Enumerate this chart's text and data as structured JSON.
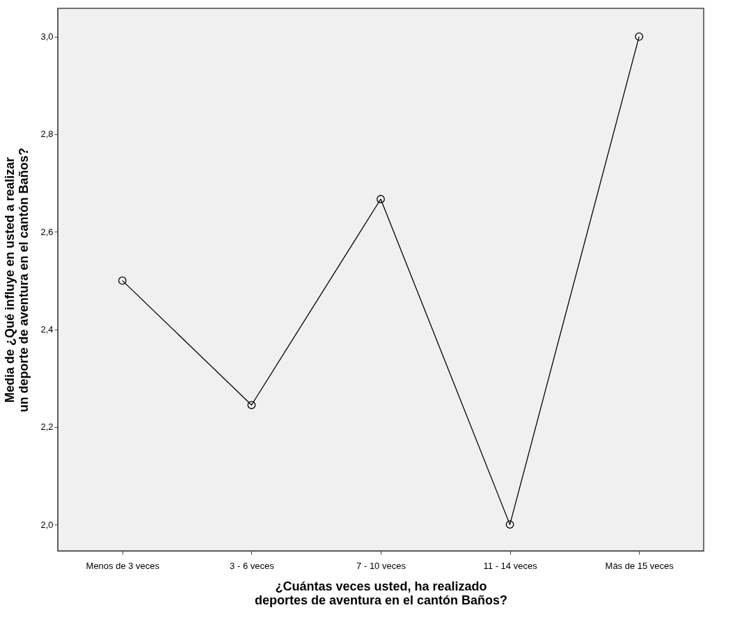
{
  "chart_data": {
    "type": "line",
    "xlabel": "¿Cuántas veces usted, ha realizado deportes de aventura en el cantón Baños?",
    "ylabel": "Media de ¿Qué influye en usted a realizar un deporte de aventura en el cantón Baños?",
    "categories": [
      "Menos de 3 veces",
      "3 - 6 veces",
      "7 - 10 veces",
      "11 - 14 veces",
      "Más de 15 veces"
    ],
    "series": [
      {
        "color": "#000000",
        "values": [
          2.5,
          2.245,
          2.667,
          2.0,
          3.0
        ]
      }
    ],
    "ylim": [
      1.946,
      3.058
    ],
    "yticks": [
      {
        "value": 2.0,
        "label": "2,0"
      },
      {
        "value": 2.2,
        "label": "2,2"
      },
      {
        "value": 2.4,
        "label": "2,4"
      },
      {
        "value": 2.6,
        "label": "2,6"
      },
      {
        "value": 2.8,
        "label": "2,8"
      },
      {
        "value": 3.0,
        "label": "3,0"
      }
    ],
    "marker": "circle",
    "line_style": "solid",
    "grid": false
  }
}
